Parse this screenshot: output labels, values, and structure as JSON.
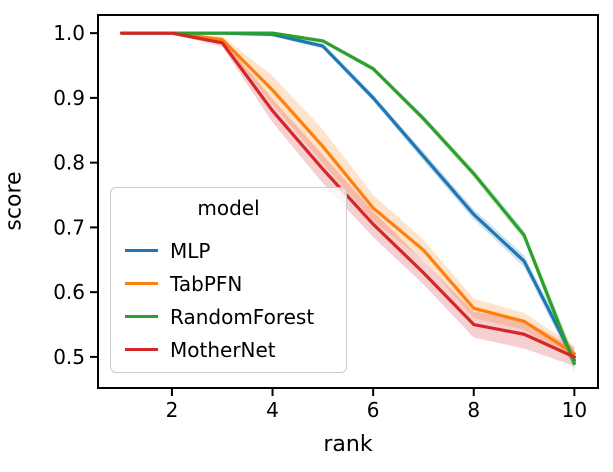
{
  "chart_data": {
    "type": "line",
    "title": "",
    "xlabel": "rank",
    "ylabel": "score",
    "grid": false,
    "legend": {
      "title": "model",
      "position": "lower-left"
    },
    "xlim": [
      0.53,
      10.47
    ],
    "ylim": [
      0.452,
      1.028
    ],
    "xticks": [
      {
        "v": 2,
        "label": "2"
      },
      {
        "v": 4,
        "label": "4"
      },
      {
        "v": 6,
        "label": "6"
      },
      {
        "v": 8,
        "label": "8"
      },
      {
        "v": 10,
        "label": "10"
      }
    ],
    "yticks": [
      {
        "v": 0.5,
        "label": "0.5"
      },
      {
        "v": 0.6,
        "label": "0.6"
      },
      {
        "v": 0.7,
        "label": "0.7"
      },
      {
        "v": 0.8,
        "label": "0.8"
      },
      {
        "v": 0.9,
        "label": "0.9"
      },
      {
        "v": 1.0,
        "label": "1.0"
      }
    ],
    "x": [
      1,
      2,
      3,
      4,
      5,
      6,
      7,
      8,
      9,
      10
    ],
    "series": [
      {
        "name": "MLP",
        "color": "#1f77b4",
        "values": [
          1.0,
          1.0,
          1.0,
          0.998,
          0.98,
          0.9,
          0.81,
          0.72,
          0.648,
          0.495
        ],
        "ci": [
          0.001,
          0.001,
          0.002,
          0.003,
          0.004,
          0.005,
          0.007,
          0.008,
          0.009,
          0.01
        ]
      },
      {
        "name": "TabPFN",
        "color": "#ff7f0e",
        "values": [
          1.0,
          1.0,
          0.99,
          0.912,
          0.825,
          0.73,
          0.665,
          0.575,
          0.555,
          0.505
        ],
        "ci": [
          0.001,
          0.001,
          0.005,
          0.022,
          0.026,
          0.02,
          0.016,
          0.015,
          0.013,
          0.012
        ]
      },
      {
        "name": "RandomForest",
        "color": "#2ca02c",
        "values": [
          1.0,
          1.0,
          1.0,
          1.0,
          0.988,
          0.945,
          0.868,
          0.783,
          0.688,
          0.49
        ],
        "ci": [
          0.001,
          0.001,
          0.001,
          0.002,
          0.003,
          0.004,
          0.005,
          0.006,
          0.007,
          0.013
        ]
      },
      {
        "name": "MotherNet",
        "color": "#d62728",
        "values": [
          1.0,
          1.0,
          0.985,
          0.88,
          0.79,
          0.705,
          0.63,
          0.55,
          0.535,
          0.5
        ],
        "ci": [
          0.001,
          0.001,
          0.006,
          0.018,
          0.022,
          0.02,
          0.018,
          0.02,
          0.022,
          0.014
        ]
      }
    ]
  }
}
